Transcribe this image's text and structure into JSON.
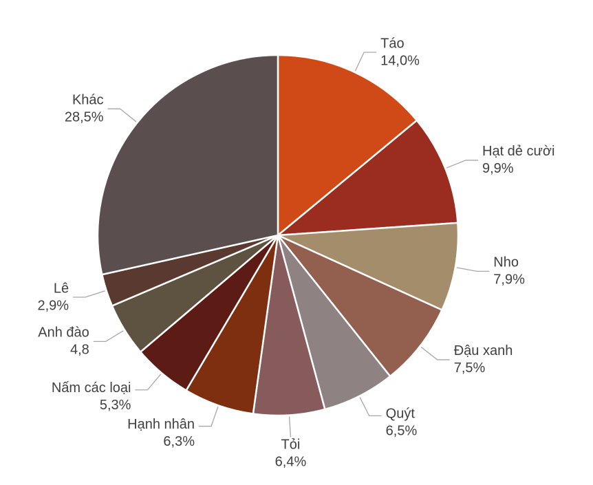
{
  "chart_data": {
    "type": "pie",
    "categories": [
      "Táo",
      "Hạt dẻ cười",
      "Nho",
      "Đậu xanh",
      "Quýt",
      "Tỏi",
      "Hạnh nhân",
      "Nấm các loại",
      "Anh đào",
      "Lê",
      "Khác"
    ],
    "values": [
      14.0,
      9.9,
      7.9,
      7.5,
      6.5,
      6.4,
      6.3,
      5.3,
      4.8,
      2.9,
      28.5
    ],
    "value_labels": [
      "14,0%",
      "9,9%",
      "7,9%",
      "7,5%",
      "6,5%",
      "6,4%",
      "6,3%",
      "5,3%",
      "4,8",
      "2,9%",
      "28,5%"
    ],
    "colors": [
      "#d04a17",
      "#9a2d1f",
      "#a38d6a",
      "#93604f",
      "#8e8282",
      "#875b5c",
      "#7d2f10",
      "#5c1b14",
      "#5e5340",
      "#5a3a30",
      "#5a4e4e"
    ]
  }
}
